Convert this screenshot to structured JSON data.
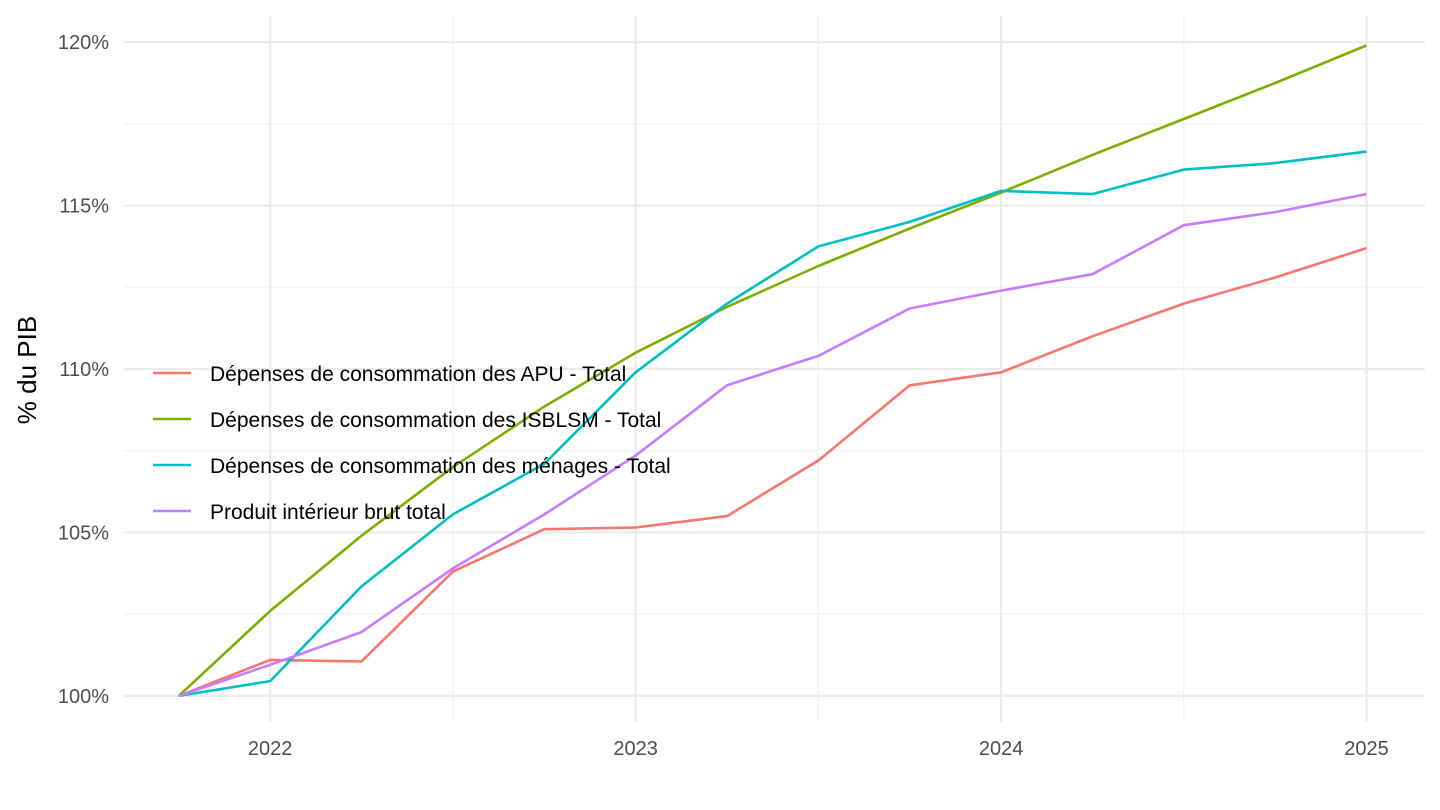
{
  "chart_data": {
    "type": "line",
    "ylabel": "% du PIB",
    "xlabel": "",
    "xlim": [
      2021.6,
      2025.16
    ],
    "ylim": [
      99.2,
      120.8
    ],
    "x_ticks": [
      {
        "value": 2022,
        "label": "2022"
      },
      {
        "value": 2023,
        "label": "2023"
      },
      {
        "value": 2024,
        "label": "2024"
      },
      {
        "value": 2025,
        "label": "2025"
      }
    ],
    "x_minor_ticks": [
      2022.5,
      2023.5,
      2024.5
    ],
    "y_ticks": [
      {
        "value": 100,
        "label": "100%"
      },
      {
        "value": 105,
        "label": "105%"
      },
      {
        "value": 110,
        "label": "110%"
      },
      {
        "value": 115,
        "label": "115%"
      },
      {
        "value": 120,
        "label": "120%"
      }
    ],
    "y_minor_ticks": [
      102.5,
      107.5,
      112.5,
      117.5
    ],
    "grid": true,
    "legend_position": "center-left",
    "x": [
      2021.75,
      2022.0,
      2022.25,
      2022.5,
      2022.75,
      2023.0,
      2023.25,
      2023.5,
      2023.75,
      2024.0,
      2024.25,
      2024.5,
      2024.75,
      2025.0
    ],
    "series": [
      {
        "name": "Dépenses de consommation des APU - Total",
        "color": "#F8766D",
        "values": [
          100.0,
          101.1,
          101.05,
          103.8,
          105.1,
          105.15,
          105.5,
          107.2,
          109.5,
          109.9,
          111.0,
          112.0,
          112.8,
          113.7
        ]
      },
      {
        "name": "Dépenses de consommation des ISBLSM - Total",
        "color": "#7CAE00",
        "values": [
          100.0,
          102.6,
          104.9,
          107.0,
          108.85,
          110.5,
          111.9,
          113.15,
          114.3,
          115.4,
          116.55,
          117.65,
          118.75,
          119.9
        ]
      },
      {
        "name": "Dépenses de consommation des ménages - Total",
        "color": "#00BFC4",
        "values": [
          100.0,
          100.45,
          103.35,
          105.55,
          107.1,
          109.9,
          112.0,
          113.75,
          114.5,
          115.45,
          115.35,
          116.1,
          116.3,
          116.65
        ]
      },
      {
        "name": "Produit intérieur brut total",
        "color": "#C77CFF",
        "values": [
          100.0,
          100.95,
          101.95,
          103.9,
          105.55,
          107.35,
          109.5,
          110.4,
          111.85,
          112.4,
          112.9,
          114.4,
          114.8,
          115.35
        ]
      }
    ]
  }
}
